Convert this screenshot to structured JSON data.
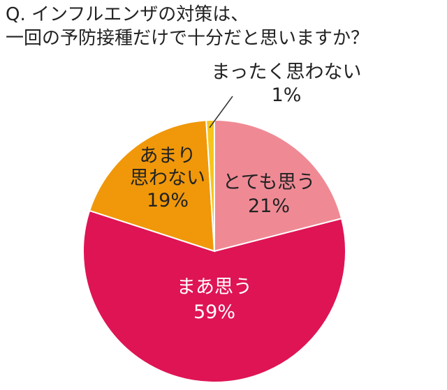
{
  "question": {
    "line1": "Q. インフルエンザの対策は、",
    "line2": "一回の予防接種だけで十分だと思いますか？"
  },
  "chart_data": {
    "type": "pie",
    "title": "Q. インフルエンザの対策は、一回の予防接種だけで十分だと思いますか？",
    "slices": [
      {
        "label_lines": [
          "とても思う"
        ],
        "value": 21,
        "value_label": "21%",
        "color": "#ef8a95",
        "label_color": "#222222"
      },
      {
        "label_lines": [
          "まあ思う"
        ],
        "value": 59,
        "value_label": "59%",
        "color": "#df1455",
        "label_color": "#ffffff"
      },
      {
        "label_lines": [
          "あまり",
          "思わない"
        ],
        "value": 19,
        "value_label": "19%",
        "color": "#f0980a",
        "label_color": "#222222"
      },
      {
        "label_lines": [
          "まったく思わない"
        ],
        "value": 1,
        "value_label": "1%",
        "color": "#f6c51d",
        "label_color": "#222222"
      }
    ]
  }
}
